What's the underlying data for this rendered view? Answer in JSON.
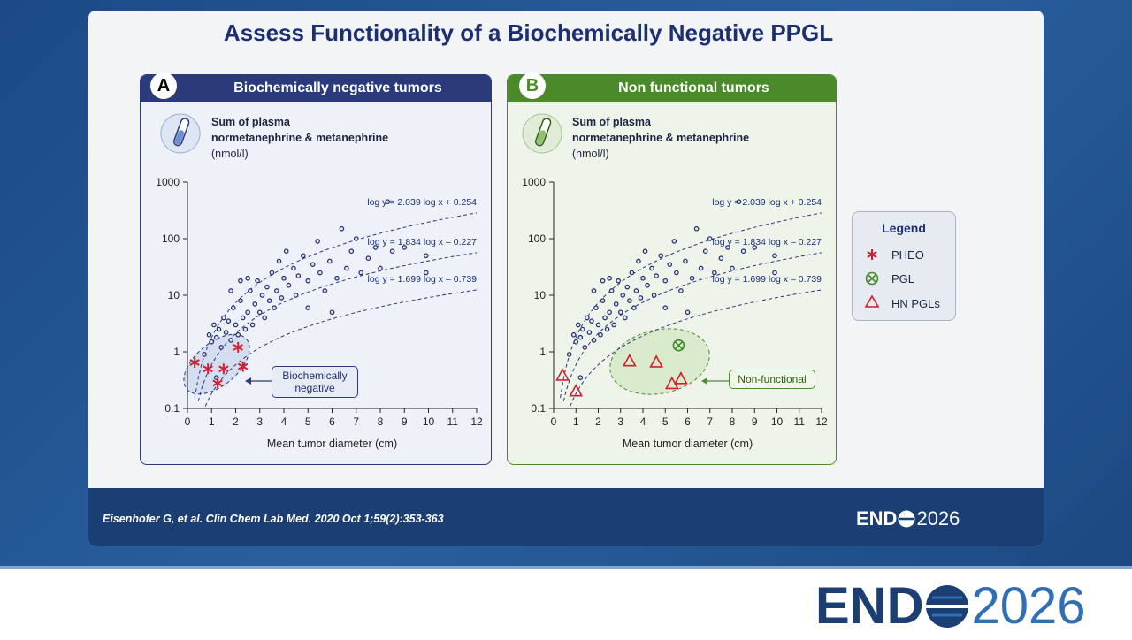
{
  "slide_title": "Assess Functionality of a Biochemically Negative PPGL",
  "chart_data": [
    {
      "type": "scatter",
      "panel_letter": "A",
      "title": "Biochemically negative tumors",
      "ylabel_lines": [
        "Sum of plasma",
        "normetanephrine & metanephrine",
        "(nmol/l)"
      ],
      "xlabel": "Mean tumor diameter (cm)",
      "xlim": [
        0,
        12
      ],
      "xticks": [
        0,
        1,
        2,
        3,
        4,
        5,
        6,
        7,
        8,
        9,
        10,
        11,
        12
      ],
      "ylim": [
        0.1,
        1000
      ],
      "yticks": [
        0.1,
        1,
        10,
        100,
        1000
      ],
      "yscale": "log",
      "curves": [
        {
          "label": "log y = 2.039 log x + 0.254",
          "slope": 2.039,
          "intercept": 0.254
        },
        {
          "label": "log y = 1.834 log x – 0.227",
          "slope": 1.834,
          "intercept": -0.227
        },
        {
          "label": "log y = 1.699 log x – 0.739",
          "slope": 1.699,
          "intercept": -0.739
        }
      ],
      "curve_color": "#2a3a7a",
      "annotation": "Biochemically negative",
      "series": [
        {
          "marker": "circle",
          "color": "#1f2d6b",
          "x": [
            0.7,
            0.9,
            1,
            1.1,
            1.2,
            1.3,
            1.4,
            1.5,
            1.6,
            1.7,
            1.8,
            1.9,
            2,
            2.1,
            2.2,
            2.3,
            2.4,
            2.5,
            2.6,
            2.7,
            2.8,
            2.9,
            3,
            3.1,
            3.2,
            3.3,
            3.4,
            3.5,
            3.6,
            3.7,
            3.8,
            3.9,
            4,
            4.1,
            4.2,
            4.4,
            4.5,
            4.6,
            4.8,
            5,
            5,
            5.2,
            5.4,
            5.5,
            5.7,
            5.9,
            6,
            6.2,
            6.4,
            6.6,
            6.8,
            7,
            7.2,
            7.5,
            7.8,
            8,
            8.3,
            8.5,
            9,
            9.9,
            9.9,
            1.8,
            1.2,
            2.2,
            2.5
          ],
          "values": [
            0.9,
            2,
            1.5,
            3,
            1.8,
            2.5,
            1.2,
            4,
            2.2,
            3.5,
            1.6,
            6,
            3,
            2,
            8,
            4,
            2.5,
            5,
            12,
            3,
            7,
            18,
            5,
            10,
            4,
            14,
            8,
            25,
            6,
            12,
            40,
            9,
            20,
            60,
            15,
            30,
            10,
            22,
            50,
            18,
            6,
            35,
            90,
            25,
            12,
            40,
            5,
            20,
            150,
            30,
            60,
            100,
            25,
            45,
            70,
            30,
            450,
            60,
            70,
            50,
            25,
            12,
            0.35,
            18,
            20
          ]
        },
        {
          "marker": "star",
          "color": "#d0202e",
          "x": [
            0.3,
            0.85,
            1.25,
            1.5,
            2.1,
            2.3
          ],
          "values": [
            0.65,
            0.5,
            0.28,
            0.5,
            1.2,
            0.55
          ]
        }
      ]
    },
    {
      "type": "scatter",
      "panel_letter": "B",
      "title": "Non functional tumors",
      "ylabel_lines": [
        "Sum of plasma",
        "normetanephrine & metanephrine",
        "(nmol/l)"
      ],
      "xlabel": "Mean tumor diameter (cm)",
      "xlim": [
        0,
        12
      ],
      "xticks": [
        0,
        1,
        2,
        3,
        4,
        5,
        6,
        7,
        8,
        9,
        10,
        11,
        12
      ],
      "ylim": [
        0.1,
        1000
      ],
      "yticks": [
        0.1,
        1,
        10,
        100,
        1000
      ],
      "yscale": "log",
      "curves": [
        {
          "label": "log y = 2.039 log x + 0.254",
          "slope": 2.039,
          "intercept": 0.254
        },
        {
          "label": "log y = 1.834 log x – 0.227",
          "slope": 1.834,
          "intercept": -0.227
        },
        {
          "label": "log y = 1.699 log x – 0.739",
          "slope": 1.699,
          "intercept": -0.739
        }
      ],
      "curve_color": "#2a3a7a",
      "annotation": "Non-functional",
      "series": [
        {
          "marker": "circle",
          "color": "#1f2d6b",
          "x": [
            0.7,
            0.9,
            1,
            1.1,
            1.2,
            1.3,
            1.4,
            1.5,
            1.6,
            1.7,
            1.8,
            1.9,
            2,
            2.1,
            2.2,
            2.3,
            2.4,
            2.5,
            2.6,
            2.7,
            2.8,
            2.9,
            3,
            3.1,
            3.2,
            3.3,
            3.4,
            3.5,
            3.6,
            3.7,
            3.8,
            3.9,
            4,
            4.1,
            4.2,
            4.4,
            4.5,
            4.6,
            4.8,
            5,
            5,
            5.2,
            5.4,
            5.5,
            5.7,
            5.9,
            6,
            6.2,
            6.4,
            6.6,
            6.8,
            7,
            7.2,
            7.5,
            7.8,
            8,
            8.3,
            8.5,
            9,
            9.9,
            9.9,
            1.8,
            1.2,
            2.2,
            2.5
          ],
          "values": [
            0.9,
            2,
            1.5,
            3,
            1.8,
            2.5,
            1.2,
            4,
            2.2,
            3.5,
            1.6,
            6,
            3,
            2,
            8,
            4,
            2.5,
            5,
            12,
            3,
            7,
            18,
            5,
            10,
            4,
            14,
            8,
            25,
            6,
            12,
            40,
            9,
            20,
            60,
            15,
            30,
            10,
            22,
            50,
            18,
            6,
            35,
            90,
            25,
            12,
            40,
            5,
            20,
            150,
            30,
            60,
            100,
            25,
            45,
            70,
            30,
            450,
            60,
            70,
            50,
            25,
            12,
            0.35,
            18,
            20
          ]
        },
        {
          "marker": "circle-x",
          "color": "#3f8a2a",
          "x": [
            5.6
          ],
          "values": [
            1.3
          ]
        },
        {
          "marker": "triangle",
          "color": "#d0202e",
          "x": [
            0.4,
            1,
            3.4,
            4.6,
            5.3,
            5.7
          ],
          "values": [
            0.38,
            0.2,
            0.68,
            0.65,
            0.27,
            0.33
          ]
        }
      ]
    }
  ],
  "legend": {
    "title": "Legend",
    "items": [
      "PHEO",
      "PGL",
      "HN PGLs"
    ]
  },
  "citation": "Eisenhofer G, et al. Clin Chem Lab Med. 2020 Oct 1;59(2):353-363",
  "logo": {
    "left": "END",
    "right": "2026"
  }
}
